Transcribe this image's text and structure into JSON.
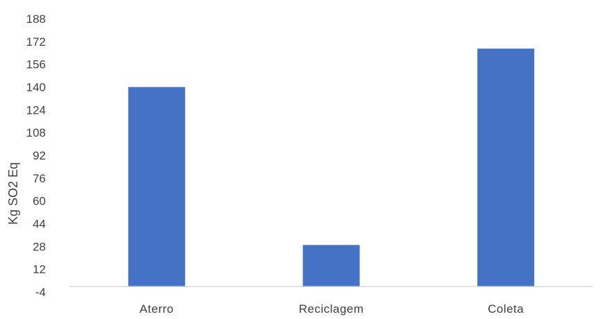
{
  "chart_data": {
    "type": "bar",
    "title": "",
    "xlabel": "",
    "ylabel": "Kg SO2 Eq",
    "categories": [
      "Aterro",
      "Reciclagem",
      "Coleta"
    ],
    "values": [
      140,
      29,
      167
    ],
    "ylim": [
      -4,
      188
    ],
    "yticks": [
      -4,
      12,
      28,
      44,
      60,
      76,
      92,
      108,
      124,
      140,
      156,
      172,
      188
    ],
    "grid": false,
    "legend": "none",
    "bar_color": "#4472c4",
    "axis_color": "#d9d9d9"
  }
}
